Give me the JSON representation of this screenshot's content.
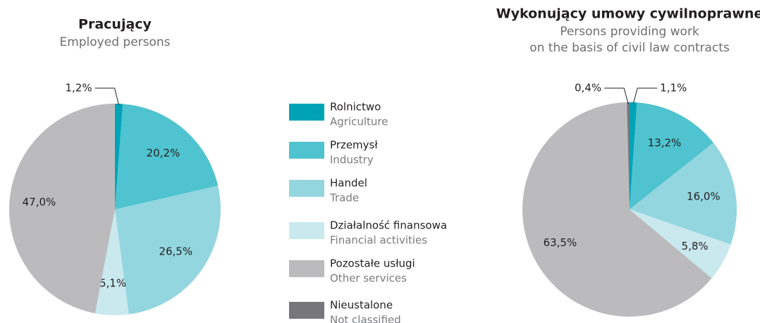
{
  "chart_data": [
    {
      "type": "pie",
      "title": "Pracujący",
      "subtitle": [
        "Employed persons"
      ],
      "values": [
        1.2,
        20.2,
        26.5,
        5.1,
        47.0
      ],
      "value_labels": [
        "1,2%",
        "20,2%",
        "26,5%",
        "5,1%",
        "47,0%"
      ]
    },
    {
      "type": "pie",
      "title": "Wykonujący umowy cywilnoprawne",
      "subtitle": [
        "Persons providing work",
        "on the basis of civil law contracts"
      ],
      "values": [
        1.1,
        13.2,
        16.0,
        5.8,
        63.5,
        0.4
      ],
      "value_labels": [
        "1,1%",
        "13,2%",
        "16,0%",
        "5,8%",
        "63,5%",
        "0,4%"
      ]
    }
  ],
  "legend": [
    {
      "label": "Rolnictwo",
      "sublabel": "Agriculture",
      "color": "#00a3b6"
    },
    {
      "label": "Przemysł",
      "sublabel": "Industry",
      "color": "#4fc3cf"
    },
    {
      "label": "Handel",
      "sublabel": "Trade",
      "color": "#93d6df"
    },
    {
      "label": "Działalność finansowa",
      "sublabel": "Financial activities",
      "color": "#c9e9ef"
    },
    {
      "label": "Pozostałe usługi",
      "sublabel": "Other services",
      "color": "#bbbbbe"
    },
    {
      "label": "Nieustalone",
      "sublabel": "Not classified",
      "color": "#77777b"
    }
  ]
}
